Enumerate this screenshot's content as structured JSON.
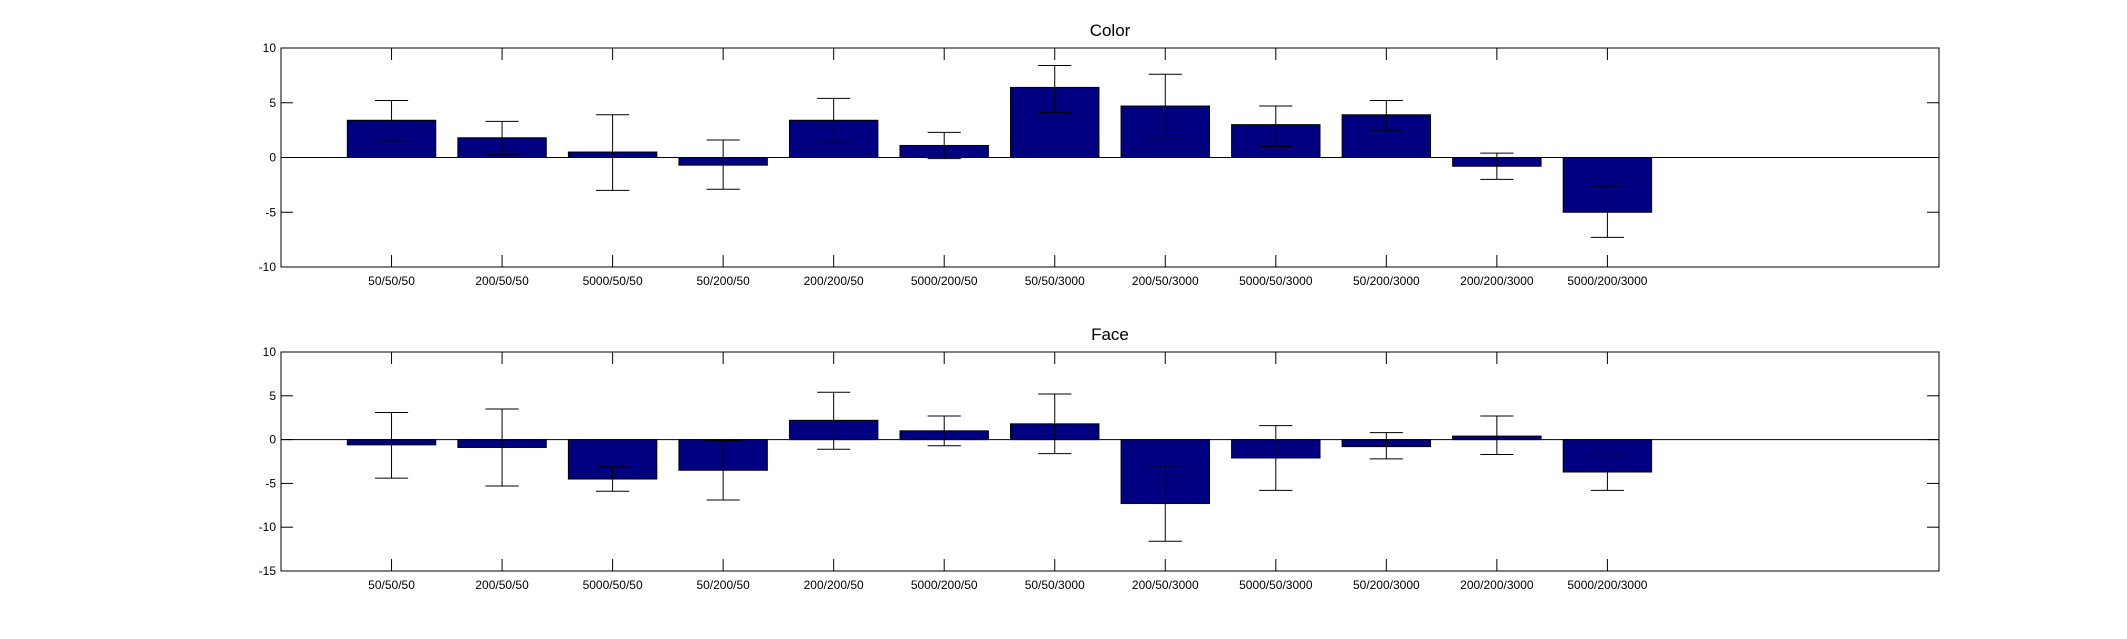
{
  "chart_data": [
    {
      "type": "bar",
      "title": "Color",
      "xlabel": "",
      "ylabel": "",
      "categories": [
        "50/50/50",
        "200/50/50",
        "5000/50/50",
        "50/200/50",
        "200/200/50",
        "5000/200/50",
        "50/50/3000",
        "200/50/3000",
        "5000/50/3000",
        "50/200/3000",
        "200/200/3000",
        "5000/200/3000"
      ],
      "values": [
        3.4,
        1.8,
        0.5,
        -0.7,
        3.4,
        1.1,
        6.4,
        4.7,
        3.0,
        3.9,
        -0.8,
        -5.0
      ],
      "error_low": [
        1.5,
        0.3,
        -3.0,
        -2.9,
        1.3,
        -0.1,
        4.1,
        1.8,
        1.0,
        2.5,
        -2.0,
        -7.3
      ],
      "error_high": [
        5.2,
        3.3,
        3.9,
        1.6,
        5.4,
        2.3,
        8.4,
        7.6,
        4.7,
        5.2,
        0.4,
        -2.6
      ],
      "ylim": [
        -10,
        10
      ],
      "yticks": [
        -10,
        -5,
        0,
        5,
        10
      ],
      "xlim": [
        0,
        15
      ],
      "grid": false,
      "colors": {
        "bar": "#000080",
        "axis": "#000000"
      }
    },
    {
      "type": "bar",
      "title": "Face",
      "xlabel": "",
      "ylabel": "",
      "categories": [
        "50/50/50",
        "200/50/50",
        "5000/50/50",
        "50/200/50",
        "200/200/50",
        "5000/200/50",
        "50/50/3000",
        "200/50/3000",
        "5000/50/3000",
        "50/200/3000",
        "200/200/3000",
        "5000/200/3000"
      ],
      "values": [
        -0.6,
        -0.9,
        -4.5,
        -3.5,
        2.2,
        1.0,
        1.8,
        -7.3,
        -2.1,
        -0.8,
        0.4,
        -3.7
      ],
      "error_low": [
        -4.4,
        -5.3,
        -5.9,
        -6.9,
        -1.1,
        -0.7,
        -1.6,
        -11.6,
        -5.8,
        -2.2,
        -1.7,
        -5.8
      ],
      "error_high": [
        3.1,
        3.5,
        -3.1,
        -0.1,
        5.4,
        2.7,
        5.2,
        -3.0,
        1.6,
        0.8,
        2.7,
        -1.6
      ],
      "ylim": [
        -15,
        10
      ],
      "yticks": [
        -15,
        -10,
        -5,
        0,
        5,
        10
      ],
      "xlim": [
        0,
        15
      ],
      "grid": false,
      "colors": {
        "bar": "#000080",
        "axis": "#000000"
      }
    }
  ]
}
